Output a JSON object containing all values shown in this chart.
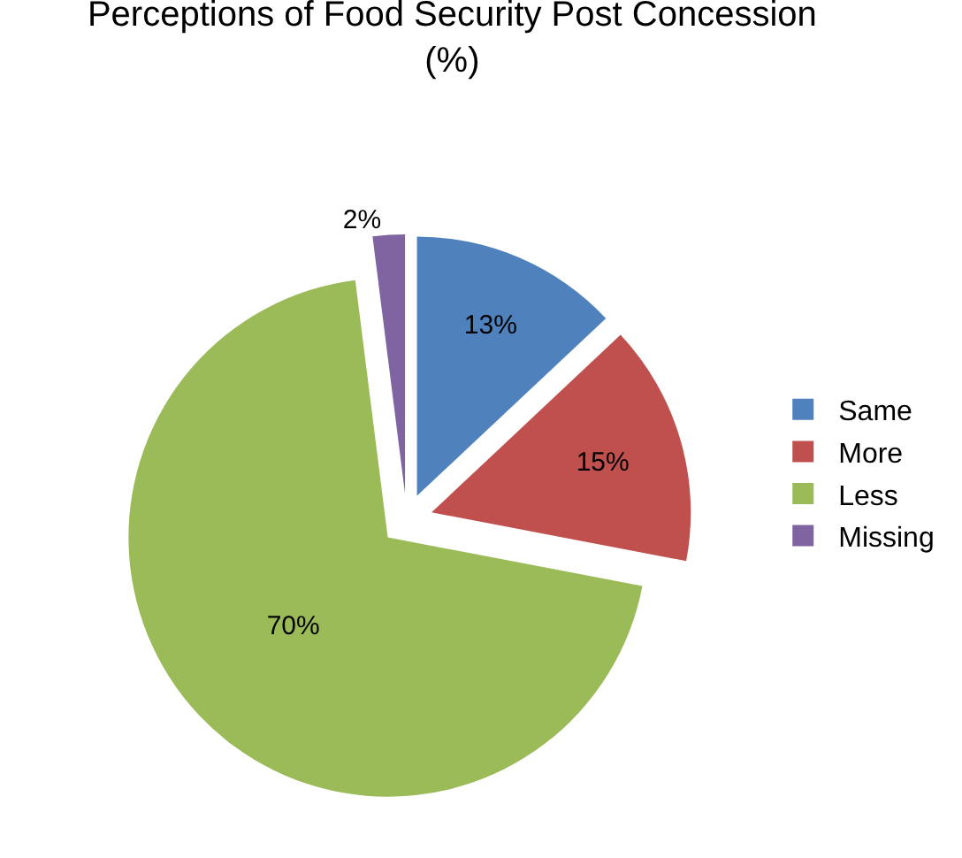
{
  "chart_data": {
    "type": "pie",
    "title": "Perceptions of Food Security Post Concession\n(%)",
    "categories": [
      "Same",
      "More",
      "Less",
      "Missing"
    ],
    "values": [
      13,
      15,
      70,
      2
    ],
    "value_labels": [
      "13%",
      "15%",
      "70%",
      "2%"
    ],
    "colors": [
      "#4f81bd",
      "#c0504d",
      "#9bbb59",
      "#8064a2"
    ],
    "legend": "right"
  }
}
